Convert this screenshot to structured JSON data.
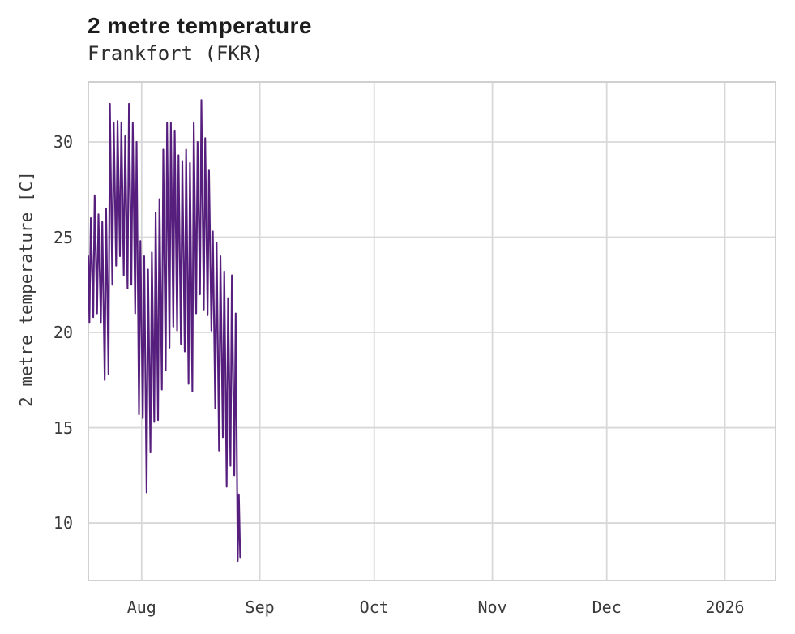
{
  "chart_data": {
    "type": "line",
    "title": "2 metre temperature",
    "subtitle": "Frankfort (FKR)",
    "ylabel": "2 metre temperature [C]",
    "xlabel": "",
    "grid": "on",
    "legend": "none",
    "colors": {
      "line": "#571f7d",
      "grid": "#d8d8d8",
      "border": "#d0d0d0",
      "title": "#1d1d1d",
      "subtitle": "#2e2e2e",
      "tick": "#3a3a3a"
    },
    "y_axis": {
      "domain": [
        6.94,
        33.19
      ],
      "ticks": [
        10,
        15,
        20,
        25,
        30
      ]
    },
    "x_axis": {
      "domain_days": [
        -0.2,
        180.5
      ],
      "day_zero": "Jul 18",
      "ticks": [
        {
          "label": "Aug",
          "day": 14
        },
        {
          "label": "Sep",
          "day": 45
        },
        {
          "label": "Oct",
          "day": 75
        },
        {
          "label": "Nov",
          "day": 106
        },
        {
          "label": "Dec",
          "day": 136
        },
        {
          "label": "2026",
          "day": 167
        }
      ]
    },
    "series_note": "hourly 2 m temperature rendered as daily min/max zigzag; data ends Aug 26",
    "start_point": {
      "day": 0.0,
      "temp": 24.0
    },
    "daily": {
      "dates": [
        "Jul 18",
        "Jul 19",
        "Jul 20",
        "Jul 21",
        "Jul 22",
        "Jul 23",
        "Jul 24",
        "Jul 25",
        "Jul 26",
        "Jul 27",
        "Jul 28",
        "Jul 29",
        "Jul 30",
        "Jul 31",
        "Aug 1",
        "Aug 2",
        "Aug 3",
        "Aug 4",
        "Aug 5",
        "Aug 6",
        "Aug 7",
        "Aug 8",
        "Aug 9",
        "Aug 10",
        "Aug 11",
        "Aug 12",
        "Aug 13",
        "Aug 14",
        "Aug 15",
        "Aug 16",
        "Aug 17",
        "Aug 18",
        "Aug 19",
        "Aug 20",
        "Aug 21",
        "Aug 22",
        "Aug 23",
        "Aug 24",
        "Aug 25"
      ],
      "min": [
        20.5,
        20.8,
        21.0,
        20.5,
        17.5,
        17.8,
        22.5,
        23.5,
        24.0,
        23.0,
        22.3,
        22.5,
        21.0,
        15.7,
        15.5,
        11.6,
        13.7,
        15.3,
        15.4,
        17.0,
        18.0,
        19.2,
        20.3,
        20.1,
        19.4,
        19.0,
        17.3,
        16.9,
        21.0,
        22.0,
        21.2,
        20.9,
        20.1,
        16.0,
        13.8,
        14.5,
        11.9,
        13.0,
        12.5
      ],
      "max": [
        26.0,
        27.2,
        26.2,
        25.8,
        26.5,
        32.0,
        31.0,
        31.1,
        31.0,
        30.3,
        32.0,
        31.0,
        30.0,
        24.8,
        24.0,
        23.3,
        24.2,
        26.3,
        27.0,
        29.6,
        31.0,
        31.0,
        30.6,
        29.3,
        29.0,
        29.6,
        28.9,
        31.0,
        30.0,
        32.2,
        30.2,
        28.5,
        25.3,
        24.7,
        24.0,
        23.2,
        21.8,
        23.0,
        21.0
      ]
    },
    "tail_points": [
      {
        "day": 39.2,
        "temp": 8.0
      },
      {
        "day": 39.5,
        "temp": 11.5
      },
      {
        "day": 39.85,
        "temp": 8.2
      }
    ]
  }
}
